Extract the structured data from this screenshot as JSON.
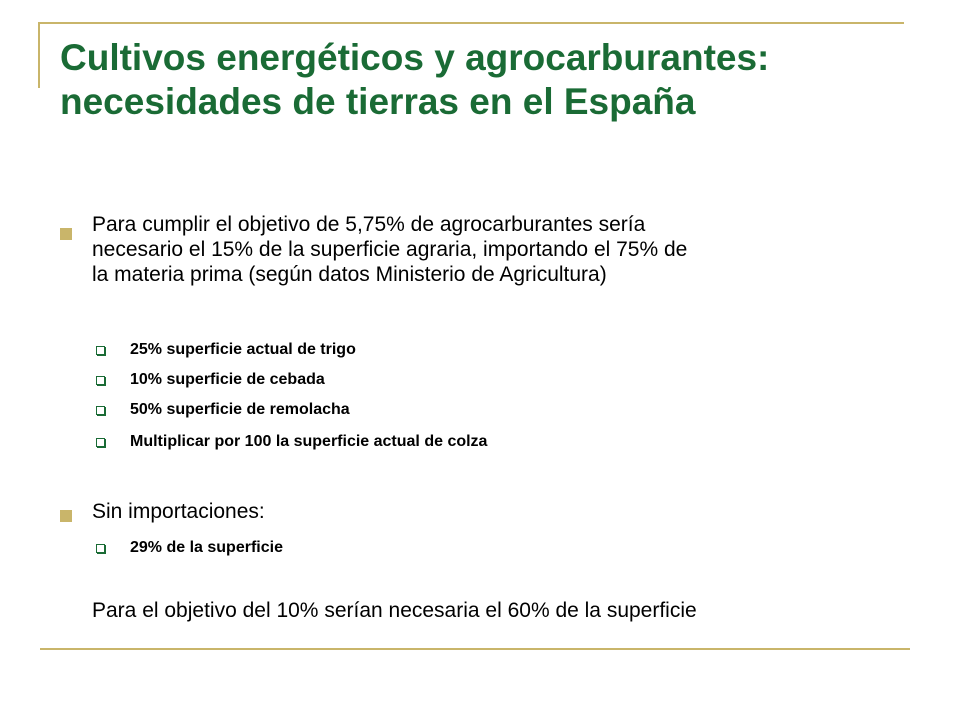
{
  "slide": {
    "title_lines": [
      "Cultivos energéticos y agrocarburantes:",
      "necesidades de tierras en el España"
    ],
    "bullets": [
      {
        "lines": [
          "Para cumplir el objetivo de 5,75% de agrocarburantes sería",
          "necesario el 15% de la superficie agraria, importando el 75% de",
          "la materia prima (según datos Ministerio de Agricultura)"
        ],
        "subitems": [
          "25% superficie actual de trigo",
          "10% superficie de cebada",
          "50% superficie de remolacha",
          "Multiplicar por 100 la superficie actual de colza"
        ]
      },
      {
        "lines": [
          "Sin importaciones:"
        ],
        "subitems": [
          "29% de la superficie"
        ]
      }
    ],
    "closing_text": "Para el objetivo del 10% serían necesaria el 60% de la superficie"
  },
  "colors": {
    "title": "#1a6b35",
    "rule": "#c9b56a",
    "bullet": "#c9b56a",
    "sub_bullet": "#1a6b35"
  }
}
